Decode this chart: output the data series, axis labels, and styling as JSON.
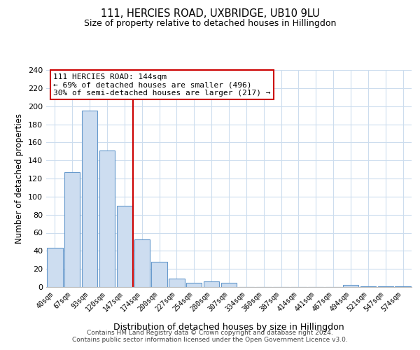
{
  "title": "111, HERCIES ROAD, UXBRIDGE, UB10 9LU",
  "subtitle": "Size of property relative to detached houses in Hillingdon",
  "xlabel": "Distribution of detached houses by size in Hillingdon",
  "ylabel": "Number of detached properties",
  "bar_labels": [
    "40sqm",
    "67sqm",
    "93sqm",
    "120sqm",
    "147sqm",
    "174sqm",
    "200sqm",
    "227sqm",
    "254sqm",
    "280sqm",
    "307sqm",
    "334sqm",
    "360sqm",
    "387sqm",
    "414sqm",
    "441sqm",
    "467sqm",
    "494sqm",
    "521sqm",
    "547sqm",
    "574sqm"
  ],
  "bar_values": [
    43,
    127,
    195,
    151,
    90,
    53,
    28,
    9,
    5,
    6,
    5,
    0,
    0,
    0,
    0,
    0,
    0,
    2,
    1,
    1,
    1
  ],
  "bar_color": "#cdddf0",
  "bar_edge_color": "#6699cc",
  "vline_x": 4.5,
  "vline_color": "#cc0000",
  "annotation_text": "111 HERCIES ROAD: 144sqm\n← 69% of detached houses are smaller (496)\n30% of semi-detached houses are larger (217) →",
  "annotation_box_color": "#ffffff",
  "annotation_box_edge": "#cc0000",
  "ylim": [
    0,
    240
  ],
  "yticks": [
    0,
    20,
    40,
    60,
    80,
    100,
    120,
    140,
    160,
    180,
    200,
    220,
    240
  ],
  "footer_text": "Contains HM Land Registry data © Crown copyright and database right 2024.\nContains public sector information licensed under the Open Government Licence v3.0.",
  "background_color": "#ffffff",
  "grid_color": "#ccddee"
}
